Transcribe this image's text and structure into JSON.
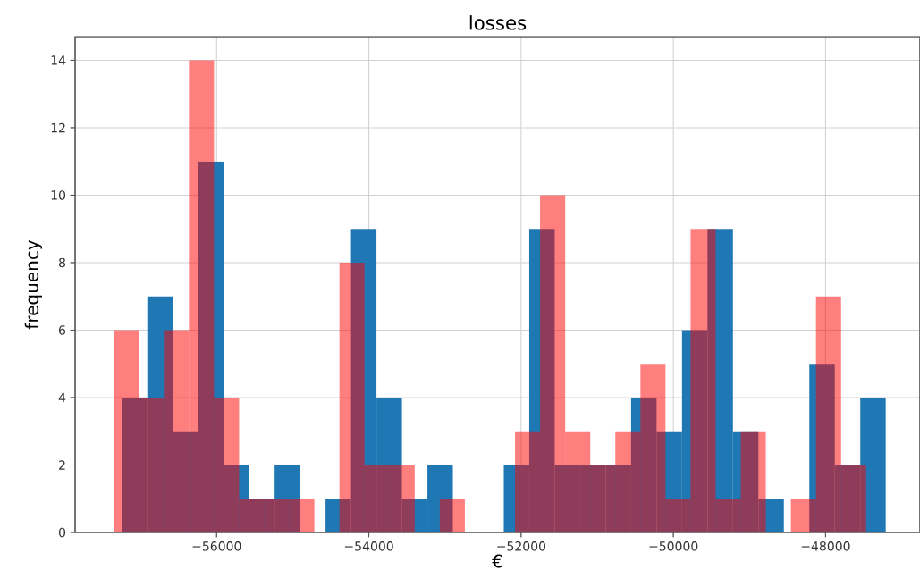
{
  "chart_data": [
    {
      "type": "histogram",
      "title": "losses",
      "xlabel": "€",
      "ylabel": "frequency",
      "color": "#1f77b4",
      "bins": [
        -57245,
        -56910.5,
        -56576,
        -56241.5,
        -55907,
        -55572.5,
        -55238,
        -54903.5,
        -54569,
        -54234.5,
        -53900,
        -53565.5,
        -53231,
        -52896.5,
        -52562,
        -52227.5,
        -51893,
        -51558.5,
        -51224,
        -50889.5,
        -50555,
        -50220.5,
        -49886,
        -49551.5,
        -49217,
        -48882.5,
        -48548,
        -48213.5,
        -47879,
        -47544.5,
        -47210
      ],
      "values": [
        4,
        7,
        3,
        11,
        2,
        1,
        2,
        0,
        1,
        9,
        4,
        1,
        2,
        0,
        0,
        2,
        9,
        2,
        2,
        2,
        4,
        3,
        6,
        9,
        3,
        1,
        0,
        5,
        2,
        4
      ],
      "xlim": [
        -57859,
        -46760
      ],
      "ylim": [
        0,
        14.7
      ],
      "xticks": [
        {
          "value": -56000,
          "label": "−56000"
        },
        {
          "value": -54000,
          "label": "−54000"
        },
        {
          "value": -52000,
          "label": "−52000"
        },
        {
          "value": -50000,
          "label": "−50000"
        },
        {
          "value": -48000,
          "label": "−48000"
        }
      ],
      "yticks": [
        0,
        2,
        4,
        6,
        8,
        10,
        12,
        14
      ],
      "grid": true
    },
    {
      "type": "histogram",
      "color": "#ff0000",
      "bins": [
        -57352,
        -57022.5,
        -56693,
        -56363.5,
        -56034,
        -55704.5,
        -55375,
        -55045.5,
        -54716,
        -54386.5,
        -54057,
        -53727.5,
        -53398,
        -53068.5,
        -52739,
        -52409.5,
        -52080,
        -51750.5,
        -51421,
        -51091.5,
        -50762,
        -50432.5,
        -50103,
        -49773.5,
        -49444,
        -49114.5,
        -48785,
        -48455.5,
        -48126,
        -47796.5,
        -47467
      ],
      "values": [
        6,
        4,
        6,
        14,
        4,
        1,
        1,
        1,
        0,
        8,
        2,
        2,
        0,
        1,
        0,
        0,
        3,
        10,
        3,
        2,
        3,
        5,
        1,
        9,
        1,
        3,
        0,
        1,
        7,
        2
      ],
      "xlim": [
        -57859,
        -46760
      ],
      "ylim": [
        0,
        14.7
      ],
      "xticks": [
        -56000,
        -54000,
        -52000,
        -50000,
        -48000
      ],
      "yticks": [
        0,
        2,
        4,
        6,
        8,
        10,
        12,
        14
      ],
      "tick_labels": false
    }
  ]
}
